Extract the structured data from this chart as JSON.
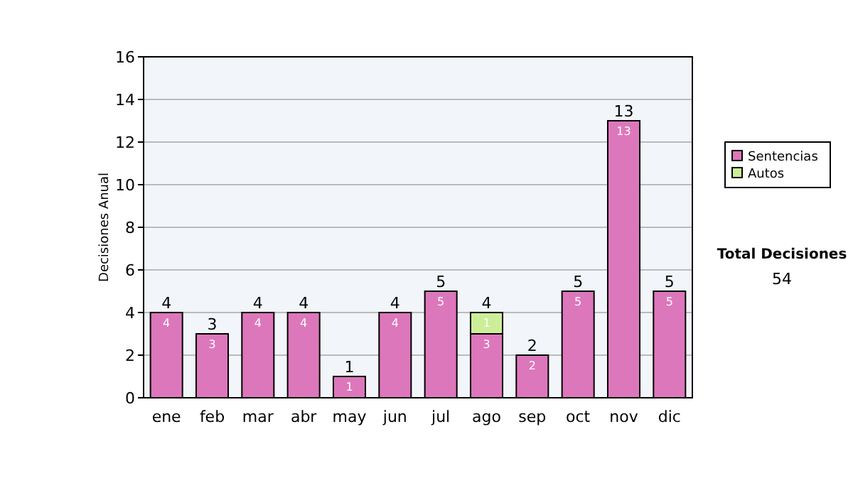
{
  "chart_data": {
    "type": "bar",
    "stacked": true,
    "ylabel": "Decisiones Anual",
    "categories": [
      "ene",
      "feb",
      "mar",
      "abr",
      "may",
      "jun",
      "jul",
      "ago",
      "sep",
      "oct",
      "nov",
      "dic"
    ],
    "series": [
      {
        "name": "Sentencias",
        "color": "#dd77bb",
        "values": [
          4,
          3,
          4,
          4,
          1,
          4,
          5,
          3,
          2,
          5,
          13,
          5
        ]
      },
      {
        "name": "Autos",
        "color": "#ccee99",
        "values": [
          null,
          null,
          null,
          null,
          null,
          null,
          null,
          1,
          null,
          null,
          null,
          null
        ]
      }
    ],
    "ylim": [
      0,
      16
    ],
    "yticks": [
      0,
      2,
      4,
      6,
      8,
      10,
      12,
      14,
      16
    ],
    "grid": "y",
    "legend": "right",
    "data_labels": true,
    "totals": [
      "4",
      "3",
      "4",
      "4",
      "1",
      "4",
      "5",
      "4",
      "2",
      "5",
      "13",
      "5"
    ],
    "annotations": [
      "Total Decisiones",
      "54"
    ]
  }
}
